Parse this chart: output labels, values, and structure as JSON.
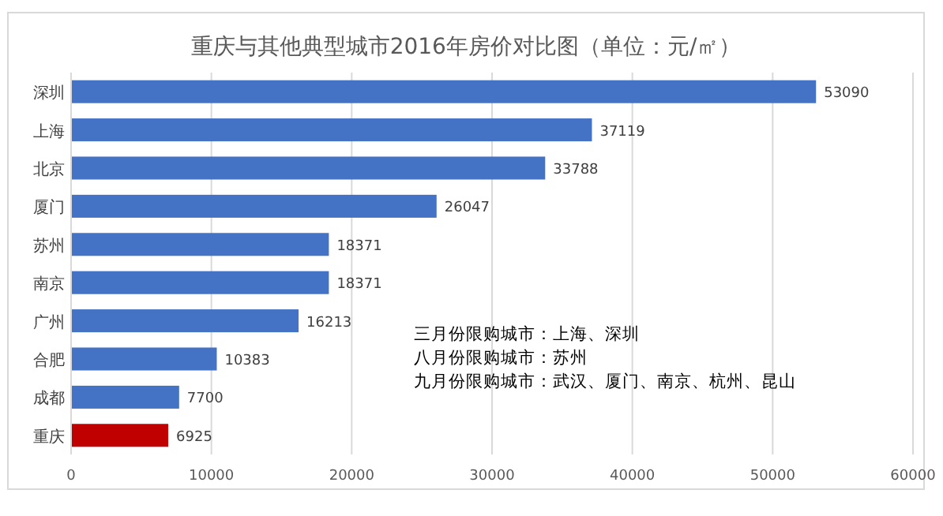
{
  "chart_data": {
    "type": "bar",
    "orientation": "horizontal",
    "title": "重庆与其他典型城市2016年房价对比图（单位：元/㎡）",
    "categories": [
      "深圳",
      "上海",
      "北京",
      "厦门",
      "苏州",
      "南京",
      "广州",
      "合肥",
      "成都",
      "重庆"
    ],
    "values": [
      53090,
      37119,
      33788,
      26047,
      18371,
      18371,
      16213,
      10383,
      7700,
      6925
    ],
    "colors": [
      "#4472c4",
      "#4472c4",
      "#4472c4",
      "#4472c4",
      "#4472c4",
      "#4472c4",
      "#4472c4",
      "#4472c4",
      "#4472c4",
      "#c00000"
    ],
    "xlim": [
      0,
      60000
    ],
    "xticks": [
      0,
      10000,
      20000,
      30000,
      40000,
      50000,
      60000
    ],
    "grid": "x",
    "data_labels": true,
    "annotations": [
      "三月份限购城市：上海、深圳",
      "八月份限购城市：苏州",
      "九月份限购城市：武汉、厦门、南京、杭州、昆山"
    ]
  }
}
